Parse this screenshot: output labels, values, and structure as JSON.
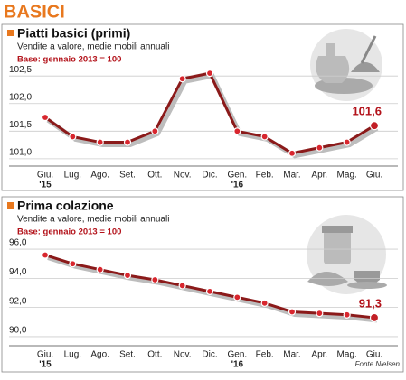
{
  "header": "BASICI",
  "source": "Fonte Nielsen",
  "chart_data": [
    {
      "type": "line",
      "title": "Piatti basici (primi)",
      "subtitle": "Vendite a valore, medie mobili annuali",
      "annotation": "Base: gennaio 2013 = 100",
      "categories": [
        "Giu.",
        "Lug.",
        "Ago.",
        "Set.",
        "Ott.",
        "Nov.",
        "Dic.",
        "Gen.",
        "Feb.",
        "Mar.",
        "Apr.",
        "Mag.",
        "Giu."
      ],
      "x_year_labels": [
        "'15",
        null,
        null,
        null,
        null,
        null,
        null,
        "'16",
        null,
        null,
        null,
        null,
        null
      ],
      "values": [
        101.75,
        101.4,
        101.3,
        101.3,
        101.5,
        102.45,
        102.55,
        101.5,
        101.4,
        101.1,
        101.2,
        101.3,
        101.6
      ],
      "value_labels": [
        null,
        null,
        null,
        null,
        null,
        null,
        null,
        null,
        null,
        null,
        null,
        null,
        "101,6"
      ],
      "color": "#8b1a1a",
      "ylim": [
        100.9,
        102.65
      ],
      "yticks": [
        {
          "value": 101,
          "label": "101,0"
        },
        {
          "value": 101.5,
          "label": "101,5"
        },
        {
          "value": 102,
          "label": "102,0"
        },
        {
          "value": 102.5,
          "label": "102,5"
        }
      ],
      "grid": true
    },
    {
      "type": "line",
      "title": "Prima colazione",
      "subtitle": "Vendite a valore, medie mobili annuali",
      "annotation": "Base: gennaio 2013 = 100",
      "categories": [
        "Giu.",
        "Lug.",
        "Ago.",
        "Set.",
        "Ott.",
        "Nov.",
        "Dic.",
        "Gen.",
        "Feb.",
        "Mar.",
        "Apr.",
        "Mag.",
        "Giu."
      ],
      "x_year_labels": [
        "'15",
        null,
        null,
        null,
        null,
        null,
        null,
        "'16",
        null,
        null,
        null,
        null,
        null
      ],
      "values": [
        95.6,
        95.0,
        94.6,
        94.2,
        93.9,
        93.5,
        93.1,
        92.7,
        92.3,
        91.7,
        91.6,
        91.5,
        91.3
      ],
      "value_labels": [
        null,
        null,
        null,
        null,
        null,
        null,
        null,
        null,
        null,
        null,
        null,
        null,
        "91,3"
      ],
      "color": "#8b1a1a",
      "ylim": [
        89.5,
        96.5
      ],
      "yticks": [
        {
          "value": 90,
          "label": "90,0"
        },
        {
          "value": 92,
          "label": "92,0"
        },
        {
          "value": 94,
          "label": "94,0"
        },
        {
          "value": 96,
          "label": "96,0"
        }
      ],
      "grid": true
    }
  ]
}
